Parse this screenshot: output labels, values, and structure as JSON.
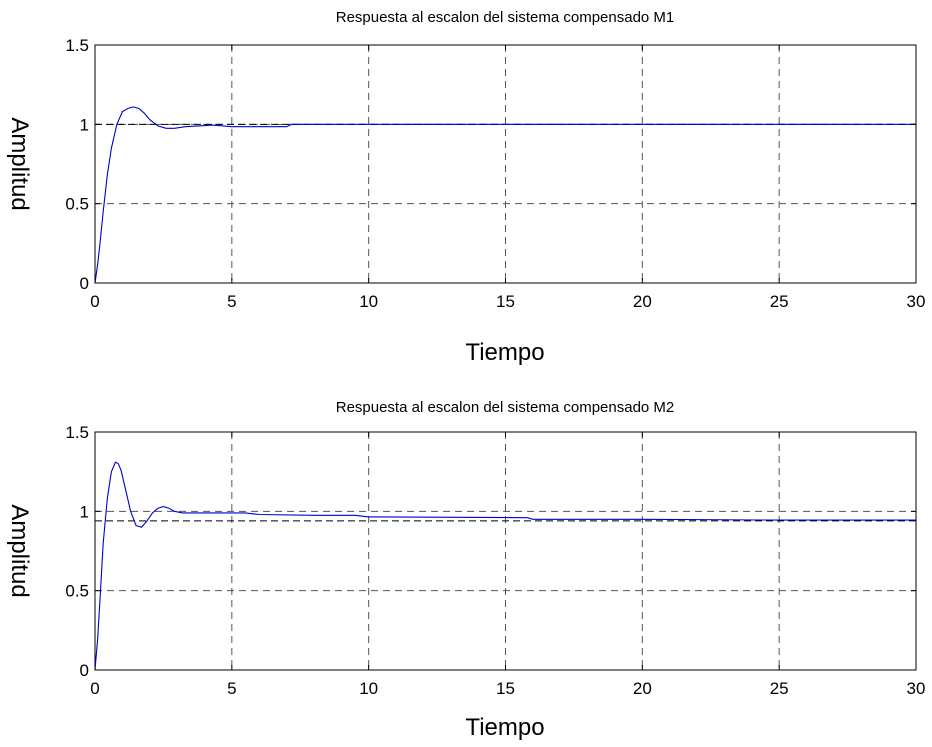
{
  "figure": {
    "plots": [
      {
        "title": "Respuesta al escalon del sistema compensado M1",
        "xlabel": "Tiempo",
        "ylabel": "Amplitud",
        "x_ticks": [
          "0",
          "5",
          "10",
          "15",
          "20",
          "25",
          "30"
        ],
        "y_ticks": [
          "0",
          "0.5",
          "1",
          "1.5"
        ]
      },
      {
        "title": "Respuesta al escalon del sistema compensado M2",
        "xlabel": "Tiempo",
        "ylabel": "Amplitud",
        "x_ticks": [
          "0",
          "5",
          "10",
          "15",
          "20",
          "25",
          "30"
        ],
        "y_ticks": [
          "0",
          "0.5",
          "1",
          "1.5"
        ]
      }
    ]
  },
  "chart_data": [
    {
      "type": "line",
      "title": "Respuesta al escalon del sistema compensado M1",
      "xlabel": "Tiempo",
      "ylabel": "Amplitud",
      "xlim": [
        0,
        30
      ],
      "ylim": [
        0,
        1.5
      ],
      "x_ticks": [
        0,
        5,
        10,
        15,
        20,
        25,
        30
      ],
      "y_ticks": [
        0,
        0.5,
        1,
        1.5
      ],
      "grid": true,
      "series_color": "#0000cc",
      "reference_line": 1.0,
      "series": [
        {
          "x": [
            0,
            0.1,
            0.2,
            0.3,
            0.45,
            0.6,
            0.8,
            1.0,
            1.2,
            1.4,
            1.6,
            1.8,
            2.0,
            2.3,
            2.6,
            2.9,
            3.3,
            3.8,
            4.3,
            5.0,
            5.5,
            6.0,
            7.0,
            7.2,
            8.0,
            10.0,
            15.0,
            20.0,
            25.0,
            30.0
          ],
          "values": [
            0,
            0.12,
            0.28,
            0.45,
            0.68,
            0.85,
            1.0,
            1.08,
            1.1,
            1.11,
            1.1,
            1.07,
            1.03,
            0.99,
            0.975,
            0.975,
            0.985,
            0.99,
            0.995,
            0.985,
            0.985,
            0.985,
            0.985,
            1.0,
            1.0,
            1.0,
            1.0,
            1.0,
            1.0,
            1.0
          ]
        }
      ]
    },
    {
      "type": "line",
      "title": "Respuesta al escalon del sistema compensado M2",
      "xlabel": "Tiempo",
      "ylabel": "Amplitud",
      "xlim": [
        0,
        30
      ],
      "ylim": [
        0,
        1.5
      ],
      "x_ticks": [
        0,
        5,
        10,
        15,
        20,
        25,
        30
      ],
      "y_ticks": [
        0,
        0.5,
        1,
        1.5
      ],
      "grid": true,
      "series_color": "#0000cc",
      "reference_line": 0.94,
      "series": [
        {
          "x": [
            0,
            0.1,
            0.2,
            0.3,
            0.45,
            0.6,
            0.75,
            0.85,
            0.95,
            1.1,
            1.3,
            1.5,
            1.7,
            1.9,
            2.1,
            2.3,
            2.5,
            2.7,
            2.9,
            3.2,
            3.6,
            4.5,
            5.5,
            6.0,
            8.0,
            9.5,
            10.0,
            15.8,
            16.0,
            20.0,
            25.0,
            30.0
          ],
          "values": [
            0,
            0.2,
            0.5,
            0.8,
            1.08,
            1.25,
            1.31,
            1.3,
            1.26,
            1.15,
            1.0,
            0.91,
            0.9,
            0.94,
            0.99,
            1.02,
            1.03,
            1.02,
            1.0,
            0.99,
            0.99,
            0.99,
            0.99,
            0.98,
            0.975,
            0.975,
            0.965,
            0.96,
            0.95,
            0.95,
            0.945,
            0.945
          ]
        }
      ]
    }
  ]
}
